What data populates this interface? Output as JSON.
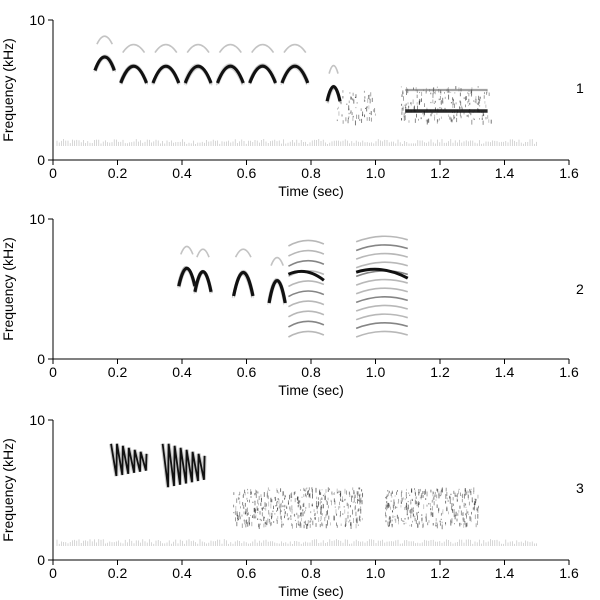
{
  "chart_data": [
    {
      "type": "spectrogram",
      "panel_label": "1",
      "xlabel": "Time (sec)",
      "ylabel": "Frequency (kHz)",
      "xlim": [
        0,
        1.6
      ],
      "ylim": [
        0,
        10
      ],
      "xticks": [
        "0",
        "0.2",
        "0.4",
        "0.6",
        "0.8",
        "1.0",
        "1.2",
        "1.4",
        "1.6"
      ],
      "yticks": [
        "0",
        "10"
      ],
      "grid": false,
      "segments": [
        {
          "kind": "arch",
          "t0": 0.13,
          "t1": 0.19,
          "f_low": 6.4,
          "f_high": 7.6
        },
        {
          "kind": "arch",
          "t0": 0.21,
          "t1": 0.29,
          "f_low": 5.5,
          "f_high": 7.0
        },
        {
          "kind": "arch",
          "t0": 0.31,
          "t1": 0.39,
          "f_low": 5.5,
          "f_high": 7.0
        },
        {
          "kind": "arch",
          "t0": 0.41,
          "t1": 0.49,
          "f_low": 5.5,
          "f_high": 7.0
        },
        {
          "kind": "arch",
          "t0": 0.51,
          "t1": 0.59,
          "f_low": 5.5,
          "f_high": 7.0
        },
        {
          "kind": "arch",
          "t0": 0.61,
          "t1": 0.69,
          "f_low": 5.5,
          "f_high": 7.0
        },
        {
          "kind": "arch",
          "t0": 0.71,
          "t1": 0.79,
          "f_low": 5.5,
          "f_high": 7.0
        },
        {
          "kind": "arch",
          "t0": 0.85,
          "t1": 0.89,
          "f_low": 4.2,
          "f_high": 5.5
        },
        {
          "kind": "noise",
          "t0": 0.88,
          "t1": 1.0,
          "f_low": 2.8,
          "f_high": 5.0,
          "density": 0.35
        },
        {
          "kind": "band",
          "t0": 1.08,
          "t1": 1.36,
          "f_low": 2.8,
          "f_high": 5.3,
          "line_freqs": [
            3.5,
            5.0
          ],
          "density": 0.4
        }
      ],
      "noise_floor_khz": 1.0
    },
    {
      "type": "spectrogram",
      "panel_label": "2",
      "xlabel": "Time (sec)",
      "ylabel": "Frequency (kHz)",
      "xlim": [
        0,
        1.6
      ],
      "ylim": [
        0,
        10
      ],
      "xticks": [
        "0",
        "0.2",
        "0.4",
        "0.6",
        "0.8",
        "1.0",
        "1.2",
        "1.4",
        "1.6"
      ],
      "yticks": [
        "0",
        "10"
      ],
      "grid": false,
      "segments": [
        {
          "kind": "arch",
          "t0": 0.39,
          "t1": 0.44,
          "f_low": 5.2,
          "f_high": 6.8
        },
        {
          "kind": "arch",
          "t0": 0.44,
          "t1": 0.49,
          "f_low": 4.8,
          "f_high": 6.6
        },
        {
          "kind": "arch",
          "t0": 0.56,
          "t1": 0.62,
          "f_low": 4.5,
          "f_high": 6.6
        },
        {
          "kind": "arch",
          "t0": 0.67,
          "t1": 0.72,
          "f_low": 4.0,
          "f_high": 6.0
        },
        {
          "kind": "harmonic",
          "t0": 0.73,
          "t1": 0.84,
          "f_low": 2.0,
          "f_high": 8.5,
          "n": 10
        },
        {
          "kind": "harmonic",
          "t0": 0.94,
          "t1": 1.1,
          "f_low": 2.0,
          "f_high": 8.8,
          "n": 12
        }
      ],
      "noise_floor_khz": 0
    },
    {
      "type": "spectrogram",
      "panel_label": "3",
      "xlabel": "Time (sec)",
      "ylabel": "Frequency (kHz)",
      "xlim": [
        0,
        1.6
      ],
      "ylim": [
        0,
        10
      ],
      "xticks": [
        "0",
        "0.2",
        "0.4",
        "0.6",
        "0.8",
        "1.0",
        "1.2",
        "1.4",
        "1.6"
      ],
      "yticks": [
        "0",
        "10"
      ],
      "grid": false,
      "segments": [
        {
          "kind": "zigzag",
          "t0": 0.18,
          "t1": 0.29,
          "f_low": 6.0,
          "f_high": 8.3,
          "n": 6
        },
        {
          "kind": "zigzag",
          "t0": 0.34,
          "t1": 0.47,
          "f_low": 5.2,
          "f_high": 8.3,
          "n": 7
        },
        {
          "kind": "noise",
          "t0": 0.56,
          "t1": 0.96,
          "f_low": 2.5,
          "f_high": 5.2,
          "density": 0.55
        },
        {
          "kind": "noise",
          "t0": 1.03,
          "t1": 1.32,
          "f_low": 2.5,
          "f_high": 5.2,
          "density": 0.55
        }
      ],
      "noise_floor_khz": 1.0
    }
  ]
}
